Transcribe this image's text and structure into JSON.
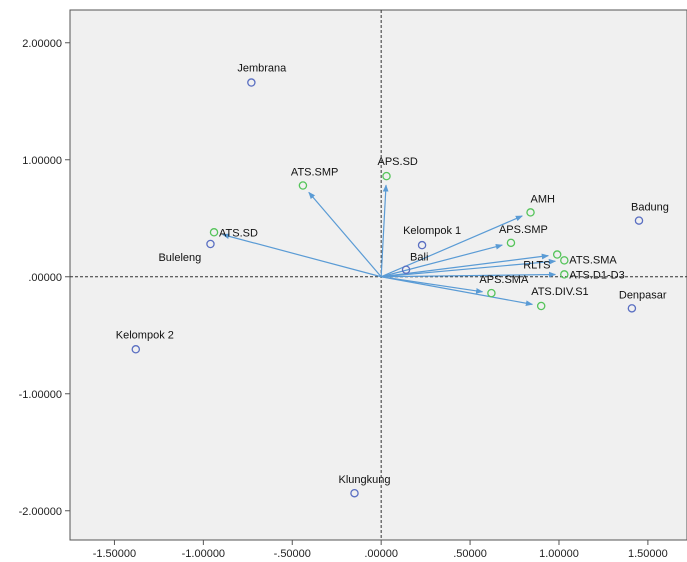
{
  "chart_data": {
    "type": "scatter",
    "subtype": "biplot",
    "title": "",
    "xlabel": "",
    "ylabel": "",
    "xlim": [
      -1.75,
      1.72
    ],
    "ylim": [
      -2.25,
      2.28
    ],
    "x_ticks": [
      -1.5,
      -1.0,
      -0.5,
      0.0,
      0.5,
      1.0,
      1.5
    ],
    "x_tick_labels": [
      "-1.50000",
      "-1.00000",
      "-.50000",
      ".00000",
      ".50000",
      "1.00000",
      "1.50000"
    ],
    "y_ticks": [
      2.0,
      1.0,
      0.0,
      -1.0,
      -2.0
    ],
    "y_tick_labels": [
      "2.00000",
      "1.00000",
      ".00000",
      "-1.00000",
      "-2.00000"
    ],
    "grid": false,
    "reference_lines": [
      "x=0 dashed",
      "y=0 dashed"
    ],
    "colors": {
      "plot_background": "#f0f0f0",
      "object_marker": "#5a6fc2",
      "variable_marker": "#55c45a",
      "vector": "#5a9bd5",
      "reference_line": "#333333",
      "frame": "#555555"
    },
    "objects": [
      {
        "label": "Jembrana",
        "x": -0.73,
        "y": 1.66
      },
      {
        "label": "Buleleng",
        "x": -0.96,
        "y": 0.28
      },
      {
        "label": "Kelompok 2",
        "x": -1.38,
        "y": -0.62
      },
      {
        "label": "Klungkung",
        "x": -0.15,
        "y": -1.85
      },
      {
        "label": "Kelompok 1",
        "x": 0.23,
        "y": 0.27
      },
      {
        "label": "Bali",
        "x": 0.14,
        "y": 0.06
      },
      {
        "label": "Badung",
        "x": 1.45,
        "y": 0.48
      },
      {
        "label": "Denpasar",
        "x": 1.41,
        "y": -0.27
      }
    ],
    "variables": [
      {
        "label": "ATS.SMP",
        "x": -0.44,
        "y": 0.78
      },
      {
        "label": "APS.SD",
        "x": 0.03,
        "y": 0.86
      },
      {
        "label": "ATS.SD",
        "x": -0.94,
        "y": 0.38
      },
      {
        "label": "AMH",
        "x": 0.84,
        "y": 0.55
      },
      {
        "label": "APS.SMP",
        "x": 0.73,
        "y": 0.29
      },
      {
        "label": "RLTS",
        "x": 0.99,
        "y": 0.19
      },
      {
        "label": "ATS.SMA",
        "x": 1.03,
        "y": 0.14
      },
      {
        "label": "ATS.D1-D3",
        "x": 1.03,
        "y": 0.02
      },
      {
        "label": "APS.SMA",
        "x": 0.62,
        "y": -0.14
      },
      {
        "label": "ATS.DIV.S1",
        "x": 0.9,
        "y": -0.25
      }
    ]
  }
}
